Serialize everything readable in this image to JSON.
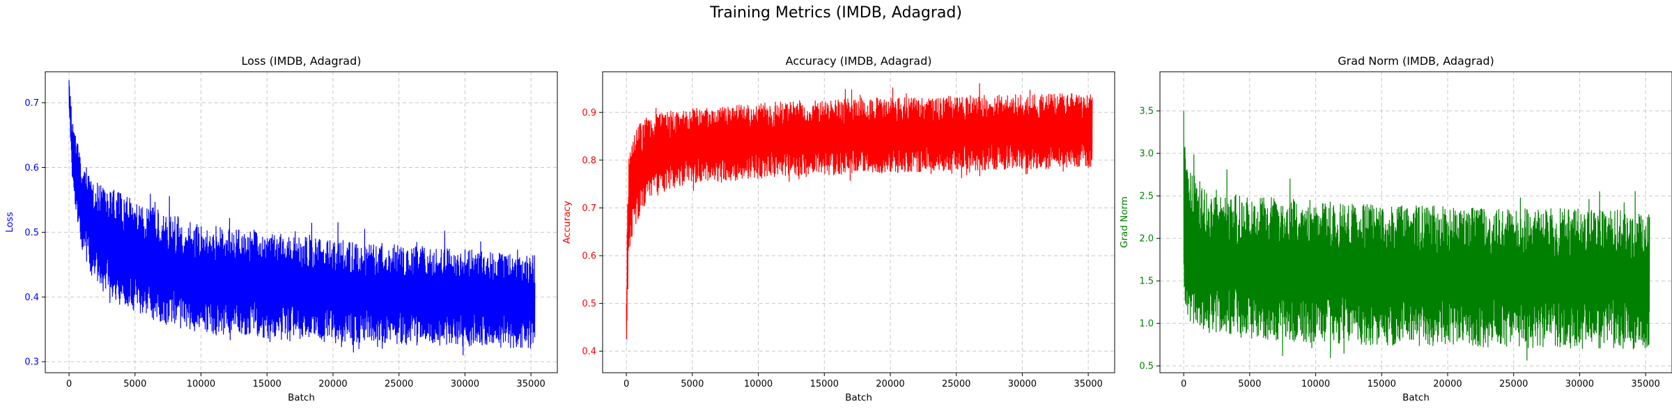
{
  "figure": {
    "suptitle": "Training Metrics (IMDB, Adagrad)"
  },
  "chart_data": [
    {
      "type": "line",
      "title": "Loss (IMDB, Adagrad)",
      "xlabel": "Batch",
      "ylabel": "Loss",
      "color": "#0000ff",
      "xlim": [
        -1800,
        37000
      ],
      "ylim": [
        0.283,
        0.748
      ],
      "xticks": [
        0,
        5000,
        10000,
        15000,
        20000,
        25000,
        30000,
        35000
      ],
      "yticks": [
        0.3,
        0.4,
        0.5,
        0.6,
        0.7
      ],
      "grid": true,
      "series": [
        {
          "x": [
            0,
            200,
            500,
            1000,
            1500,
            2000,
            3000,
            4000,
            5000,
            7500,
            10000,
            12500,
            15000,
            17500,
            20000,
            22500,
            25000,
            27500,
            30000,
            32500,
            35300
          ],
          "upper": [
            0.735,
            0.685,
            0.65,
            0.62,
            0.6,
            0.585,
            0.57,
            0.56,
            0.55,
            0.53,
            0.515,
            0.505,
            0.5,
            0.495,
            0.49,
            0.485,
            0.482,
            0.478,
            0.475,
            0.47,
            0.465
          ],
          "lower": [
            0.69,
            0.6,
            0.53,
            0.47,
            0.44,
            0.42,
            0.4,
            0.385,
            0.375,
            0.355,
            0.345,
            0.34,
            0.335,
            0.332,
            0.33,
            0.328,
            0.326,
            0.325,
            0.323,
            0.322,
            0.32
          ]
        }
      ]
    },
    {
      "type": "line",
      "title": "Accuracy (IMDB, Adagrad)",
      "xlabel": "Batch",
      "ylabel": "Accuracy",
      "color": "#ff0000",
      "xlim": [
        -1800,
        37000
      ],
      "ylim": [
        0.355,
        0.985
      ],
      "xticks": [
        0,
        5000,
        10000,
        15000,
        20000,
        25000,
        30000,
        35000
      ],
      "yticks": [
        0.4,
        0.5,
        0.6,
        0.7,
        0.8,
        0.9
      ],
      "grid": true,
      "series": [
        {
          "x": [
            0,
            100,
            250,
            500,
            1000,
            1500,
            2000,
            3000,
            4000,
            5000,
            7500,
            10000,
            12500,
            15000,
            17500,
            20000,
            22500,
            25000,
            27500,
            30000,
            32500,
            35300
          ],
          "upper": [
            0.5,
            0.78,
            0.82,
            0.85,
            0.88,
            0.89,
            0.895,
            0.9,
            0.905,
            0.91,
            0.915,
            0.92,
            0.925,
            0.928,
            0.93,
            0.932,
            0.933,
            0.935,
            0.937,
            0.938,
            0.94,
            0.94
          ],
          "lower": [
            0.38,
            0.5,
            0.6,
            0.65,
            0.68,
            0.7,
            0.72,
            0.735,
            0.745,
            0.75,
            0.755,
            0.76,
            0.765,
            0.768,
            0.77,
            0.772,
            0.775,
            0.777,
            0.779,
            0.78,
            0.781,
            0.782
          ]
        }
      ]
    },
    {
      "type": "line",
      "title": "Grad Norm (IMDB, Adagrad)",
      "xlabel": "Batch",
      "ylabel": "Grad Norm",
      "color": "#008000",
      "xlim": [
        -1800,
        37000
      ],
      "ylim": [
        0.42,
        3.96
      ],
      "xticks": [
        0,
        5000,
        10000,
        15000,
        20000,
        25000,
        30000,
        35000
      ],
      "yticks": [
        0.5,
        1.0,
        1.5,
        2.0,
        2.5,
        3.0,
        3.5
      ],
      "grid": true,
      "series": [
        {
          "x": [
            0,
            200,
            500,
            1000,
            2000,
            3000,
            5000,
            7500,
            10000,
            12500,
            15000,
            17500,
            20000,
            22500,
            25000,
            27500,
            30000,
            32500,
            35300
          ],
          "upper": [
            3.5,
            3.0,
            2.8,
            2.7,
            2.6,
            2.55,
            2.5,
            2.48,
            2.45,
            2.42,
            2.4,
            2.4,
            2.38,
            2.38,
            2.37,
            2.36,
            2.35,
            2.35,
            2.3
          ],
          "lower": [
            1.3,
            1.05,
            0.95,
            0.9,
            0.86,
            0.83,
            0.8,
            0.78,
            0.76,
            0.75,
            0.74,
            0.73,
            0.72,
            0.715,
            0.71,
            0.705,
            0.7,
            0.7,
            0.69
          ]
        }
      ]
    }
  ]
}
